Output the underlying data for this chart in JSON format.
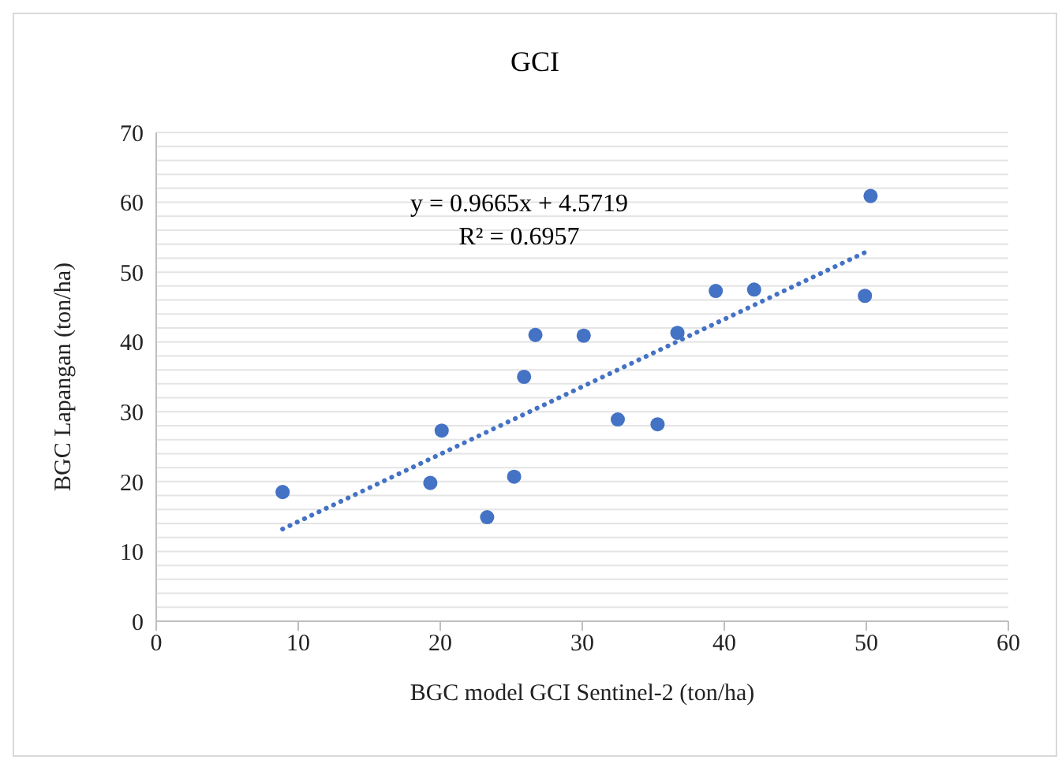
{
  "chart_data": {
    "type": "scatter",
    "title": "GCI",
    "xlabel": "BGC model GCI Sentinel-2 (ton/ha)",
    "ylabel": "BGC Lapangan (ton/ha)",
    "xlim": [
      0,
      60
    ],
    "xticks": [
      0,
      10,
      20,
      30,
      40,
      50,
      60
    ],
    "ylim": [
      0,
      70
    ],
    "yticks": [
      0,
      {
        "value": 2,
        "label": null
      },
      {
        "value": 4,
        "label": null
      },
      {
        "value": 6,
        "label": null
      },
      {
        "value": 8,
        "label": null
      },
      10,
      {
        "value": 12,
        "label": null
      },
      {
        "value": 14,
        "label": null
      },
      {
        "value": 16,
        "label": null
      },
      {
        "value": 18,
        "label": null
      },
      20,
      {
        "value": 22,
        "label": null
      },
      {
        "value": 24,
        "label": null
      },
      {
        "value": 26,
        "label": null
      },
      {
        "value": 28,
        "label": null
      },
      30,
      {
        "value": 32,
        "label": null
      },
      {
        "value": 34,
        "label": null
      },
      {
        "value": 36,
        "label": null
      },
      {
        "value": 38,
        "label": null
      },
      40,
      {
        "value": 42,
        "label": null
      },
      {
        "value": 44,
        "label": null
      },
      {
        "value": 46,
        "label": null
      },
      {
        "value": 48,
        "label": null
      },
      50,
      {
        "value": 52,
        "label": null
      },
      {
        "value": 54,
        "label": null
      },
      {
        "value": 56,
        "label": null
      },
      {
        "value": 58,
        "label": null
      },
      60,
      {
        "value": 62,
        "label": null
      },
      {
        "value": 64,
        "label": null
      },
      {
        "value": 66,
        "label": null
      },
      {
        "value": 68,
        "label": null
      },
      70
    ],
    "grid": "y",
    "series": [
      {
        "color": "#4472c4",
        "marker": "circle",
        "x": [
          8.9,
          19.3,
          20.1,
          23.3,
          25.2,
          25.9,
          26.7,
          30.1,
          32.5,
          35.3,
          36.7,
          39.4,
          42.1,
          49.9,
          50.3
        ],
        "values": [
          18.5,
          19.8,
          27.3,
          14.9,
          20.7,
          35.0,
          41.0,
          40.9,
          28.9,
          28.2,
          41.3,
          47.3,
          47.5,
          46.6,
          60.9
        ]
      },
      {
        "type": "line",
        "color": "#4472c4",
        "marker": "none",
        "line_style": "dotted",
        "x": [
          8.9,
          50.3
        ],
        "values": [
          13.2,
          53.2
        ]
      }
    ],
    "annotations": [
      "y = 0.9665x + 4.5719",
      "R² = 0.6957"
    ]
  }
}
